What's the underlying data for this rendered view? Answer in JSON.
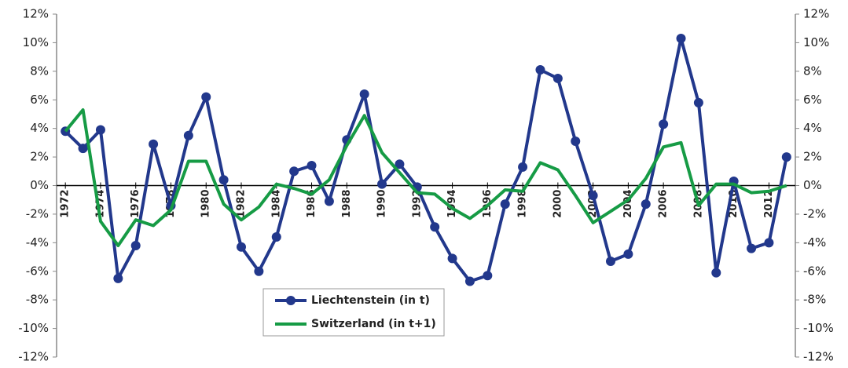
{
  "chart_data": {
    "type": "line",
    "x": [
      1972,
      1973,
      1974,
      1975,
      1976,
      1977,
      1978,
      1979,
      1980,
      1981,
      1982,
      1983,
      1984,
      1985,
      1986,
      1987,
      1988,
      1989,
      1990,
      1991,
      1992,
      1993,
      1994,
      1995,
      1996,
      1997,
      1998,
      1999,
      2000,
      2001,
      2002,
      2003,
      2004,
      2005,
      2006,
      2007,
      2008,
      2009,
      2010,
      2011,
      2012,
      2013
    ],
    "xlim": [
      1971.5,
      2013.5
    ],
    "xticks": [
      1972,
      1974,
      1976,
      1978,
      1980,
      1982,
      1984,
      1986,
      1988,
      1990,
      1992,
      1994,
      1996,
      1998,
      2000,
      2002,
      2004,
      2006,
      2008,
      2010,
      2012
    ],
    "ylim": [
      -12,
      12
    ],
    "yticks": [
      {
        "value": -12,
        "label": "-12%"
      },
      {
        "value": -10,
        "label": "-10%"
      },
      {
        "value": -8,
        "label": "-8%"
      },
      {
        "value": -6,
        "label": "-6%"
      },
      {
        "value": -4,
        "label": "-4%"
      },
      {
        "value": -2,
        "label": "-2%"
      },
      {
        "value": 0,
        "label": "0%"
      },
      {
        "value": 2,
        "label": "2%"
      },
      {
        "value": 4,
        "label": "4%"
      },
      {
        "value": 6,
        "label": "6%"
      },
      {
        "value": 8,
        "label": "8%"
      },
      {
        "value": 10,
        "label": "10%"
      },
      {
        "value": 12,
        "label": "12%"
      }
    ],
    "y2lim": [
      -12,
      12
    ],
    "y2ticks": [
      {
        "value": -12,
        "label": "-12%"
      },
      {
        "value": -10,
        "label": "-10%"
      },
      {
        "value": -8,
        "label": "-8%"
      },
      {
        "value": -6,
        "label": "-6%"
      },
      {
        "value": -4,
        "label": "-4%"
      },
      {
        "value": -2,
        "label": "-2%"
      },
      {
        "value": 0,
        "label": "0%"
      },
      {
        "value": 2,
        "label": "2%"
      },
      {
        "value": 4,
        "label": "4%"
      },
      {
        "value": 6,
        "label": "6%"
      },
      {
        "value": 8,
        "label": "8%"
      },
      {
        "value": 10,
        "label": "10%"
      },
      {
        "value": 12,
        "label": "12%"
      }
    ],
    "series": [
      {
        "name": "Liechtenstein (in t)",
        "color": "#22388c",
        "markers": true,
        "values": [
          3.8,
          2.6,
          3.9,
          -6.5,
          -4.2,
          2.9,
          -1.4,
          3.5,
          6.2,
          0.4,
          -4.3,
          -6.0,
          -3.6,
          1.0,
          1.4,
          -1.1,
          3.2,
          6.4,
          0.1,
          1.5,
          -0.1,
          -2.9,
          -5.1,
          -6.7,
          -6.3,
          -1.3,
          1.3,
          8.1,
          7.5,
          3.1,
          -0.7,
          -5.3,
          -4.8,
          -1.3,
          4.3,
          10.3,
          5.8,
          -6.1,
          0.3,
          -4.4,
          -4.0,
          2.0
        ]
      },
      {
        "name": "Switzerland (in t+1)",
        "color": "#169b45",
        "markers": false,
        "values": [
          3.8,
          5.3,
          -2.5,
          -4.2,
          -2.4,
          -2.8,
          -1.7,
          1.7,
          1.7,
          -1.3,
          -2.4,
          -1.5,
          0.1,
          -0.2,
          -0.6,
          0.4,
          2.8,
          4.9,
          2.3,
          0.9,
          -0.5,
          -0.6,
          -1.6,
          -2.3,
          -1.4,
          -0.3,
          -0.4,
          1.6,
          1.1,
          -0.7,
          -2.6,
          -1.8,
          -1.0,
          0.5,
          2.7,
          3.0,
          -1.4,
          0.1,
          0.1,
          -0.5,
          -0.4,
          0.0
        ]
      }
    ]
  }
}
